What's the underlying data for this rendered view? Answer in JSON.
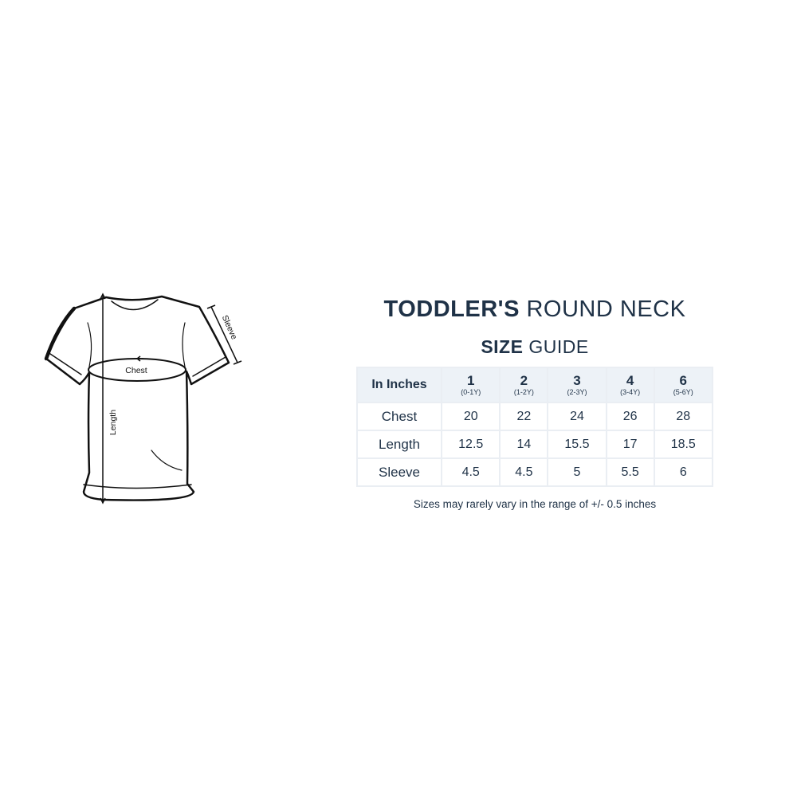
{
  "title": {
    "bold": "TODDLER'S",
    "light": "ROUND NECK"
  },
  "subtitle": {
    "bold": "SIZE",
    "light": "GUIDE"
  },
  "diagram": {
    "chest_label": "Chest",
    "length_label": "Length",
    "sleeve_label": "Sleeve"
  },
  "table": {
    "corner": "In Inches",
    "sizes": [
      {
        "size": "1",
        "age": "(0-1Y)"
      },
      {
        "size": "2",
        "age": "(1-2Y)"
      },
      {
        "size": "3",
        "age": "(2-3Y)"
      },
      {
        "size": "4",
        "age": "(3-4Y)"
      },
      {
        "size": "6",
        "age": "(5-6Y)"
      }
    ],
    "rows": [
      {
        "label": "Chest",
        "values": [
          "20",
          "22",
          "24",
          "26",
          "28"
        ]
      },
      {
        "label": "Length",
        "values": [
          "12.5",
          "14",
          "15.5",
          "17",
          "18.5"
        ]
      },
      {
        "label": "Sleeve",
        "values": [
          "4.5",
          "4.5",
          "5",
          "5.5",
          "6"
        ]
      }
    ]
  },
  "note": "Sizes may rarely vary in the range of +/- 0.5 inches",
  "colors": {
    "text": "#1f3247",
    "header_bg": "#edf2f7",
    "border": "#eaeef3"
  }
}
